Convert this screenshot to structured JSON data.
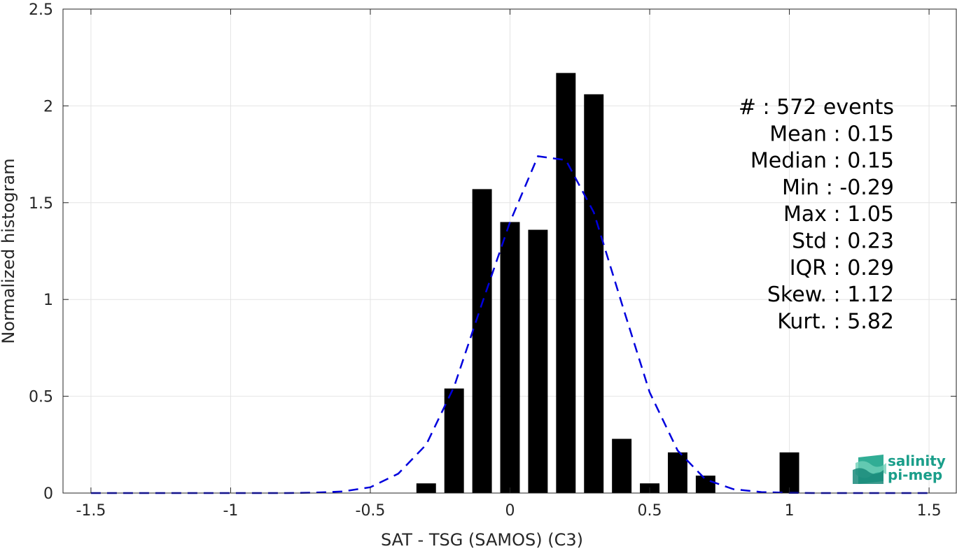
{
  "chart_data": {
    "type": "bar",
    "xlabel": "SAT - TSG (SAMOS) (C3)",
    "ylabel": "Normalized histogram",
    "xlim": [
      -1.6,
      1.6
    ],
    "ylim": [
      0,
      2.5
    ],
    "xticks": [
      -1.5,
      -1,
      -0.5,
      0,
      0.5,
      1,
      1.5
    ],
    "xtick_labels": [
      "-1.5",
      "-1",
      "-0.5",
      "0",
      "0.5",
      "1",
      "1.5"
    ],
    "yticks": [
      0,
      0.5,
      1,
      1.5,
      2,
      2.5
    ],
    "ytick_labels": [
      "0",
      "0.5",
      "1",
      "1.5",
      "2",
      "2.5"
    ],
    "grid": true,
    "bar_width": 0.07,
    "bars": {
      "x": [
        -0.3,
        -0.2,
        -0.1,
        0.0,
        0.1,
        0.2,
        0.3,
        0.4,
        0.5,
        0.6,
        0.7,
        1.0
      ],
      "values": [
        0.05,
        0.54,
        1.57,
        1.4,
        1.36,
        2.17,
        2.06,
        0.28,
        0.05,
        0.21,
        0.09,
        0.21
      ],
      "color": "#000000"
    },
    "fit_curve": {
      "style": "dashed",
      "color": "#0000dd",
      "x": [
        -1.5,
        -1.4,
        -1.3,
        -1.2,
        -1.1,
        -1.0,
        -0.9,
        -0.8,
        -0.7,
        -0.6,
        -0.5,
        -0.4,
        -0.3,
        -0.2,
        -0.1,
        0.0,
        0.1,
        0.2,
        0.3,
        0.4,
        0.5,
        0.6,
        0.7,
        0.8,
        0.9,
        1.0,
        1.1,
        1.2,
        1.3,
        1.4,
        1.5
      ],
      "y": [
        0,
        0,
        0,
        0,
        0,
        0,
        0,
        0,
        0.002,
        0.008,
        0.03,
        0.1,
        0.25,
        0.55,
        0.98,
        1.4,
        1.74,
        1.72,
        1.45,
        0.98,
        0.52,
        0.22,
        0.07,
        0.02,
        0.005,
        0.001,
        0,
        0,
        0,
        0,
        0
      ]
    },
    "annotations": [
      "#  : 572 events",
      "Mean : 0.15",
      "Median : 0.15",
      "Min : -0.29",
      "Max : 1.05",
      "Std : 0.23",
      "IQR : 0.29",
      "Skew. : 1.12",
      "Kurt. : 5.82"
    ]
  },
  "logo": {
    "line1": "salinity",
    "line2": "pi-mep",
    "color": "#1a9e8a"
  }
}
